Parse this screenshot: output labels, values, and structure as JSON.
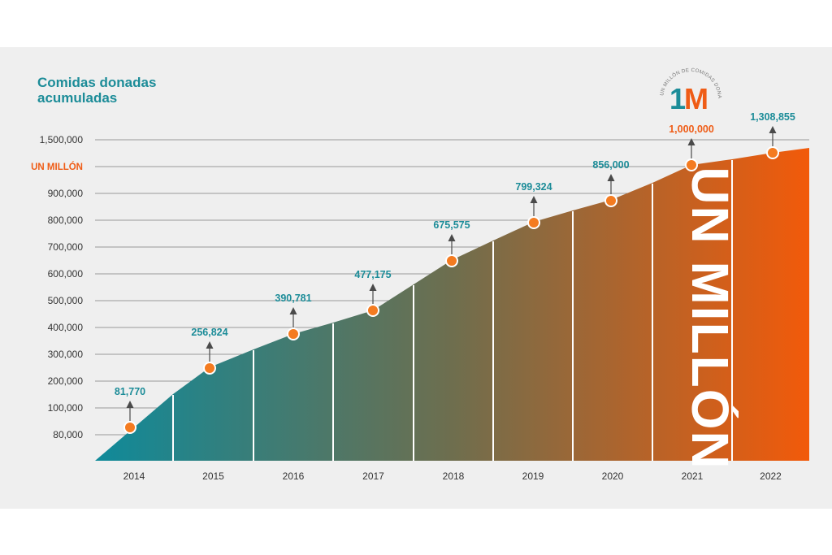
{
  "chart_data": {
    "type": "area",
    "title": [
      "Comidas donadas",
      "acumuladas"
    ],
    "categories": [
      "2014",
      "2015",
      "2016",
      "2017",
      "2018",
      "2019",
      "2020",
      "2021",
      "2022"
    ],
    "values": [
      81770,
      256824,
      390781,
      477175,
      675575,
      799324,
      856000,
      1000000,
      1308855
    ],
    "value_labels": [
      "81,770",
      "256,824",
      "390,781",
      "477,175",
      "675,575",
      "799,324",
      "856,000",
      "1,000,000",
      "1,308,855"
    ],
    "y_ticks": [
      {
        "label": "1,500,000",
        "highlight": false
      },
      {
        "label": "UN MILLÓN",
        "highlight": true
      },
      {
        "label": "900,000",
        "highlight": false
      },
      {
        "label": "800,000",
        "highlight": false
      },
      {
        "label": "700,000",
        "highlight": false
      },
      {
        "label": "600,000",
        "highlight": false
      },
      {
        "label": "500,000",
        "highlight": false
      },
      {
        "label": "400,000",
        "highlight": false
      },
      {
        "label": "300,000",
        "highlight": false
      },
      {
        "label": "200,000",
        "highlight": false
      },
      {
        "label": "100,000",
        "highlight": false
      },
      {
        "label": "80,000",
        "highlight": false
      }
    ],
    "grid": true,
    "banner_text": "UN MILLÓN",
    "colors": {
      "start": "#0f8a9a",
      "end": "#f25a0a",
      "marker": "#f47b20",
      "label": "#1c8c98",
      "highlight_label": "#ef5c16",
      "arrow": "#4a4a4a",
      "grid": "#9a9a9a"
    }
  },
  "logo": {
    "mark": "1M",
    "ring_text": "UN MILLÓN DE COMIDAS DONADAS"
  }
}
